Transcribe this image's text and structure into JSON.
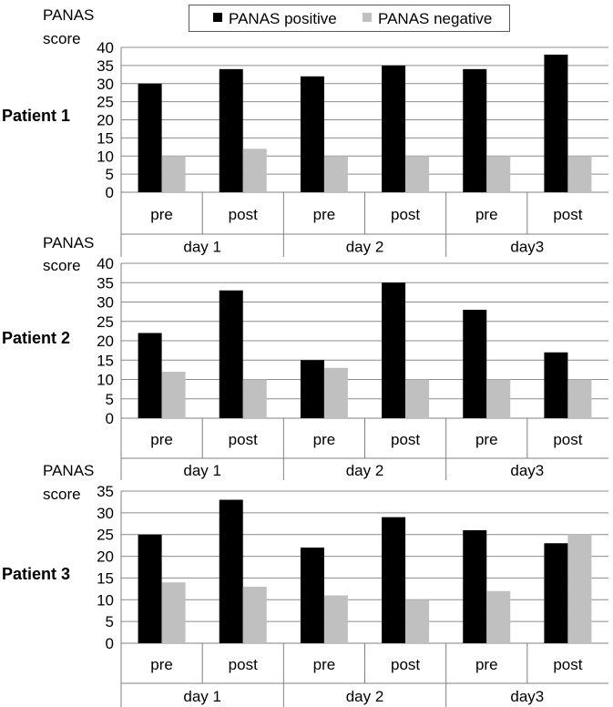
{
  "colors": {
    "positive": "#000000",
    "negative": "#c0c0c0",
    "axis": "#808080",
    "grid": "#8c8c8c"
  },
  "legend": {
    "positive_label": "PANAS positive",
    "negative_label": "PANAS negative"
  },
  "chart_data": [
    {
      "type": "bar",
      "panel_label": "Patient 1",
      "ylabel_lines": [
        "PANAS",
        "score"
      ],
      "categories": [
        "pre",
        "post",
        "pre",
        "post",
        "pre",
        "post"
      ],
      "groups": [
        "day 1",
        "day 2",
        "day3"
      ],
      "ylim": [
        0,
        40
      ],
      "yticks": [
        0,
        5,
        10,
        15,
        20,
        25,
        30,
        35,
        40
      ],
      "grid": true,
      "legend_position": "top-center",
      "series": [
        {
          "name": "PANAS positive",
          "values": [
            30,
            34,
            32,
            35,
            34,
            38
          ]
        },
        {
          "name": "PANAS negative",
          "values": [
            10,
            12,
            10,
            10,
            10,
            10
          ]
        }
      ]
    },
    {
      "type": "bar",
      "panel_label": "Patient 2",
      "ylabel_lines": [
        "PANAS",
        "score"
      ],
      "categories": [
        "pre",
        "post",
        "pre",
        "post",
        "pre",
        "post"
      ],
      "groups": [
        "day 1",
        "day 2",
        "day3"
      ],
      "ylim": [
        0,
        40
      ],
      "yticks": [
        0,
        5,
        10,
        15,
        20,
        25,
        30,
        35,
        40
      ],
      "grid": true,
      "series": [
        {
          "name": "PANAS positive",
          "values": [
            22,
            33,
            15,
            35,
            28,
            17
          ]
        },
        {
          "name": "PANAS negative",
          "values": [
            12,
            10,
            13,
            10,
            10,
            10
          ]
        }
      ]
    },
    {
      "type": "bar",
      "panel_label": "Patient 3",
      "ylabel_lines": [
        "PANAS",
        "score"
      ],
      "categories": [
        "pre",
        "post",
        "pre",
        "post",
        "pre",
        "post"
      ],
      "groups": [
        "day 1",
        "day 2",
        "day3"
      ],
      "ylim": [
        0,
        35
      ],
      "yticks": [
        0,
        5,
        10,
        15,
        20,
        25,
        30,
        35
      ],
      "grid": true,
      "series": [
        {
          "name": "PANAS positive",
          "values": [
            25,
            33,
            22,
            29,
            26,
            23
          ]
        },
        {
          "name": "PANAS negative",
          "values": [
            14,
            13,
            11,
            10,
            12,
            25
          ]
        }
      ]
    }
  ]
}
